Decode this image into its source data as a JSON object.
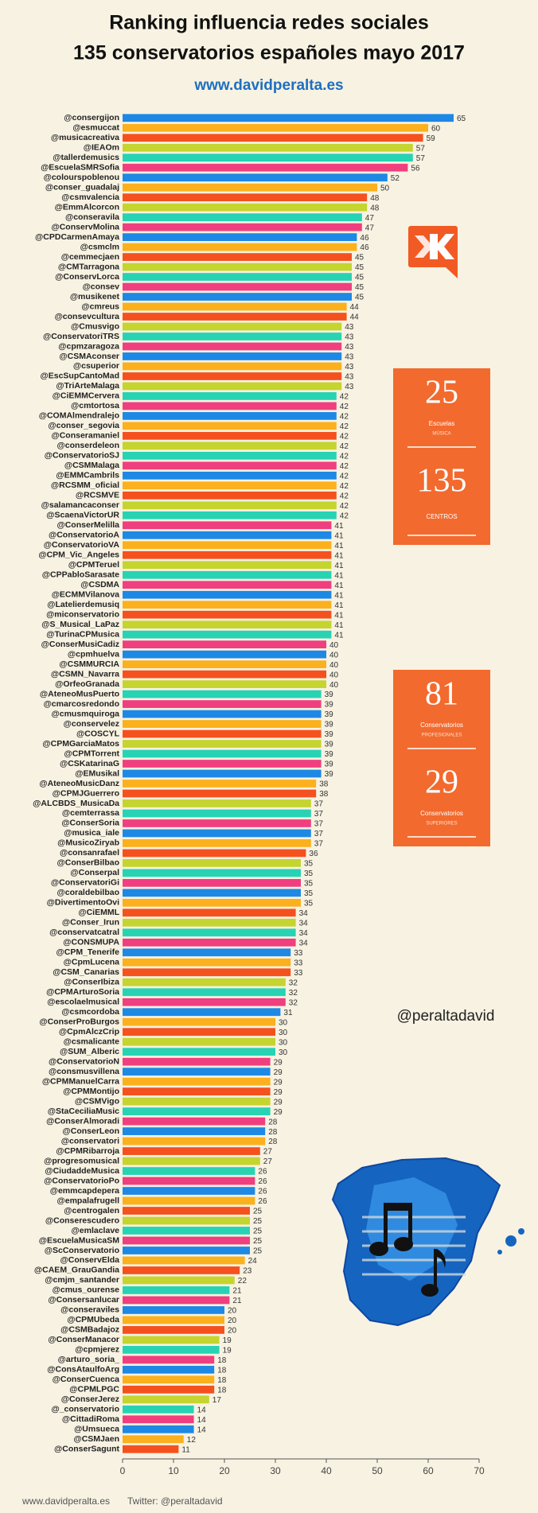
{
  "chart_data": {
    "type": "barh",
    "title": "Ranking influencia redes sociales",
    "subtitle": "135 conservatorios españoles mayo 2017",
    "categories": [
      "@consergijon",
      "@esmuccat",
      "@musicacreativa",
      "@IEAOm",
      "@tallerdemusics",
      "@EscuelaSMRSofia",
      "@colourspoblenou",
      "@conser_guadalaj",
      "@csmvalencia",
      "@EmmAlcorcon",
      "@conseravila",
      "@ConservMolina",
      "@CPDCarmenAmaya",
      "@csmclm",
      "@cemmecjaen",
      "@CMTarragona",
      "@ConservLorca",
      "@consev",
      "@musikenet",
      "@cmreus",
      "@consevcultura",
      "@Cmusvigo",
      "@ConservatoriTRS",
      "@cpmzaragoza",
      "@CSMAconser",
      "@csuperior",
      "@EscSupCantoMad",
      "@TriArteMalaga",
      "@CiEMMCervera",
      "@cmtortosa",
      "@COMAlmendralejo",
      "@conser_segovia",
      "@Conseramaniel",
      "@conserdeleon",
      "@ConservatorioSJ",
      "@CSMMalaga",
      "@EMMCambrils",
      "@RCSMM_oficial",
      "@RCSMVE",
      "@salamancaconser",
      "@ScaenaVictorUR",
      "@ConserMelilla",
      "@ConservatorioA",
      "@ConservatorioVA",
      "@CPM_Vic_Angeles",
      "@CPMTeruel",
      "@CPPabloSarasate",
      "@CSDMA",
      "@ECMMVilanova",
      "@Latelierdemusiq",
      "@miconservatorio",
      "@S_Musical_LaPaz",
      "@TurinaCPMusica",
      "@ConserMusiCadiz",
      "@cpmhuelva",
      "@CSMMURCIA",
      "@CSMN_Navarra",
      "@OrfeoGranada",
      "@AteneoMusPuerto",
      "@cmarcosredondo",
      "@cmusmquiroga",
      "@conservelez",
      "@COSCYL",
      "@CPMGarciaMatos",
      "@CPMTorrent",
      "@CSKatarinaG",
      "@EMusikal",
      "@AteneoMusicDanz",
      "@CPMJGuerrero",
      "@ALCBDS_MusicaDa",
      "@cemterrassa",
      "@ConserSoria",
      "@musica_iale",
      "@MusicoZiryab",
      "@consanrafael",
      "@ConserBilbao",
      "@Conserpal",
      "@ConservatoriGi",
      "@coraldebilbao",
      "@DivertimentoOvi",
      "@CiEMML",
      "@Conser_Irun",
      "@conservatcatral",
      "@CONSMUPA",
      "@CPM_Tenerife",
      "@CpmLucena",
      "@CSM_Canarias",
      "@ConserIbiza",
      "@CPMArturoSoria",
      "@escolaelmusical",
      "@csmcordoba",
      "@ConserProBurgos",
      "@CpmAlczCrip",
      "@csmalicante",
      "@SUM_Alberic",
      "@ConservatorioN",
      "@consmusvillena",
      "@CPMManuelCarra",
      "@CPMMontijo",
      "@CSMVigo",
      "@StaCeciliaMusic",
      "@ConserAlmoradi",
      "@ConserLeon",
      "@conservatori",
      "@CPMRibarroja",
      "@progresomusical",
      "@CiudaddeMusica",
      "@ConservatorioPo",
      "@emmcapdepera",
      "@empalafrugell",
      "@centrogalen",
      "@Conserescudero",
      "@emlaclave",
      "@EscuelaMusicaSM",
      "@ScConservatorio",
      "@ConservElda",
      "@CAEM_GrauGandia",
      "@cmjm_santander",
      "@cmus_ourense",
      "@Consersanlucar",
      "@conseraviles",
      "@CPMUbeda",
      "@CSMBadajoz",
      "@ConserManacor",
      "@cpmjerez",
      "@arturo_soria_",
      "@ConsAtaulfoArg",
      "@ConserCuenca",
      "@CPMLPGC",
      "@ConserJerez",
      "@_conservatorio",
      "@CittadiRoma",
      "@Umsueca",
      "@CSMJaen",
      "@ConserSagunt"
    ],
    "values": [
      65,
      60,
      59,
      57,
      57,
      56,
      52,
      50,
      48,
      48,
      47,
      47,
      46,
      46,
      45,
      45,
      45,
      45,
      45,
      44,
      44,
      43,
      43,
      43,
      43,
      43,
      43,
      43,
      42,
      42,
      42,
      42,
      42,
      42,
      42,
      42,
      42,
      42,
      42,
      42,
      42,
      41,
      41,
      41,
      41,
      41,
      41,
      41,
      41,
      41,
      41,
      41,
      41,
      40,
      40,
      40,
      40,
      40,
      39,
      39,
      39,
      39,
      39,
      39,
      39,
      39,
      39,
      38,
      38,
      37,
      37,
      37,
      37,
      37,
      36,
      35,
      35,
      35,
      35,
      35,
      34,
      34,
      34,
      34,
      33,
      33,
      33,
      32,
      32,
      32,
      31,
      30,
      30,
      30,
      30,
      29,
      29,
      29,
      29,
      29,
      29,
      28,
      28,
      28,
      27,
      27,
      26,
      26,
      26,
      26,
      25,
      25,
      25,
      25,
      25,
      24,
      23,
      22,
      21,
      21,
      20,
      20,
      20,
      19,
      19,
      18,
      18,
      18,
      18,
      17,
      14,
      14,
      14,
      12,
      11
    ],
    "palette": [
      "#1e88e5",
      "#fbb01d",
      "#f4511e",
      "#c5d42f",
      "#27d3b3",
      "#ef3f7f"
    ],
    "xlim": [
      0,
      70
    ],
    "xticks": [
      0,
      10,
      20,
      30,
      40,
      50,
      60,
      70
    ],
    "grid": false
  },
  "header": {
    "url": "www.davidperalta.es"
  },
  "stat_boxes": [
    [
      {
        "number": 25,
        "label": "Escuelas",
        "sublabel": "MÚSICA"
      },
      {
        "number": 135,
        "label": "CENTROS"
      }
    ],
    [
      {
        "number": 81,
        "label": "Conservatorios",
        "sublabel": "PROFESIONALES"
      },
      {
        "number": 29,
        "label": "Conservatorios",
        "sublabel": "SUPERIORES"
      }
    ]
  ],
  "handle": "@peraltadavid",
  "footer": {
    "website": "www.davidperalta.es",
    "twitter": "Twitter: @peraltadavid"
  }
}
